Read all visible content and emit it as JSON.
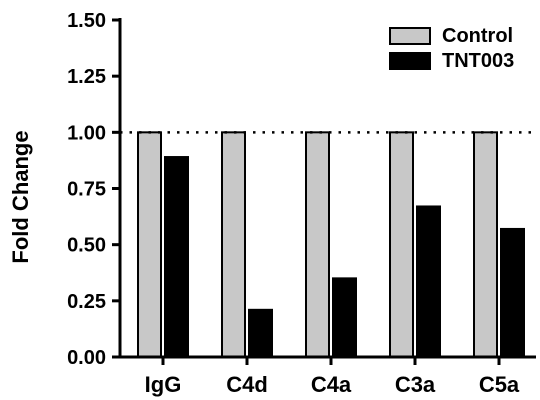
{
  "chart_data": {
    "type": "bar",
    "categories": [
      "IgG",
      "C4d",
      "C4a",
      "C3a",
      "C5a"
    ],
    "series": [
      {
        "name": "Control",
        "values": [
          1.0,
          1.0,
          1.0,
          1.0,
          1.0
        ],
        "color": "#c8c8c8"
      },
      {
        "name": "TNT003",
        "values": [
          0.89,
          0.21,
          0.35,
          0.67,
          0.57
        ],
        "color": "#000000"
      }
    ],
    "ylabel": "Fold Change",
    "ylim": [
      0,
      1.5
    ],
    "yticks": [
      "0.00",
      "0.25",
      "0.50",
      "0.75",
      "1.00",
      "1.25",
      "1.50"
    ],
    "reference_line": {
      "y": 1.0,
      "style": "dotted"
    },
    "legend_position": "top-right",
    "grid": false
  }
}
